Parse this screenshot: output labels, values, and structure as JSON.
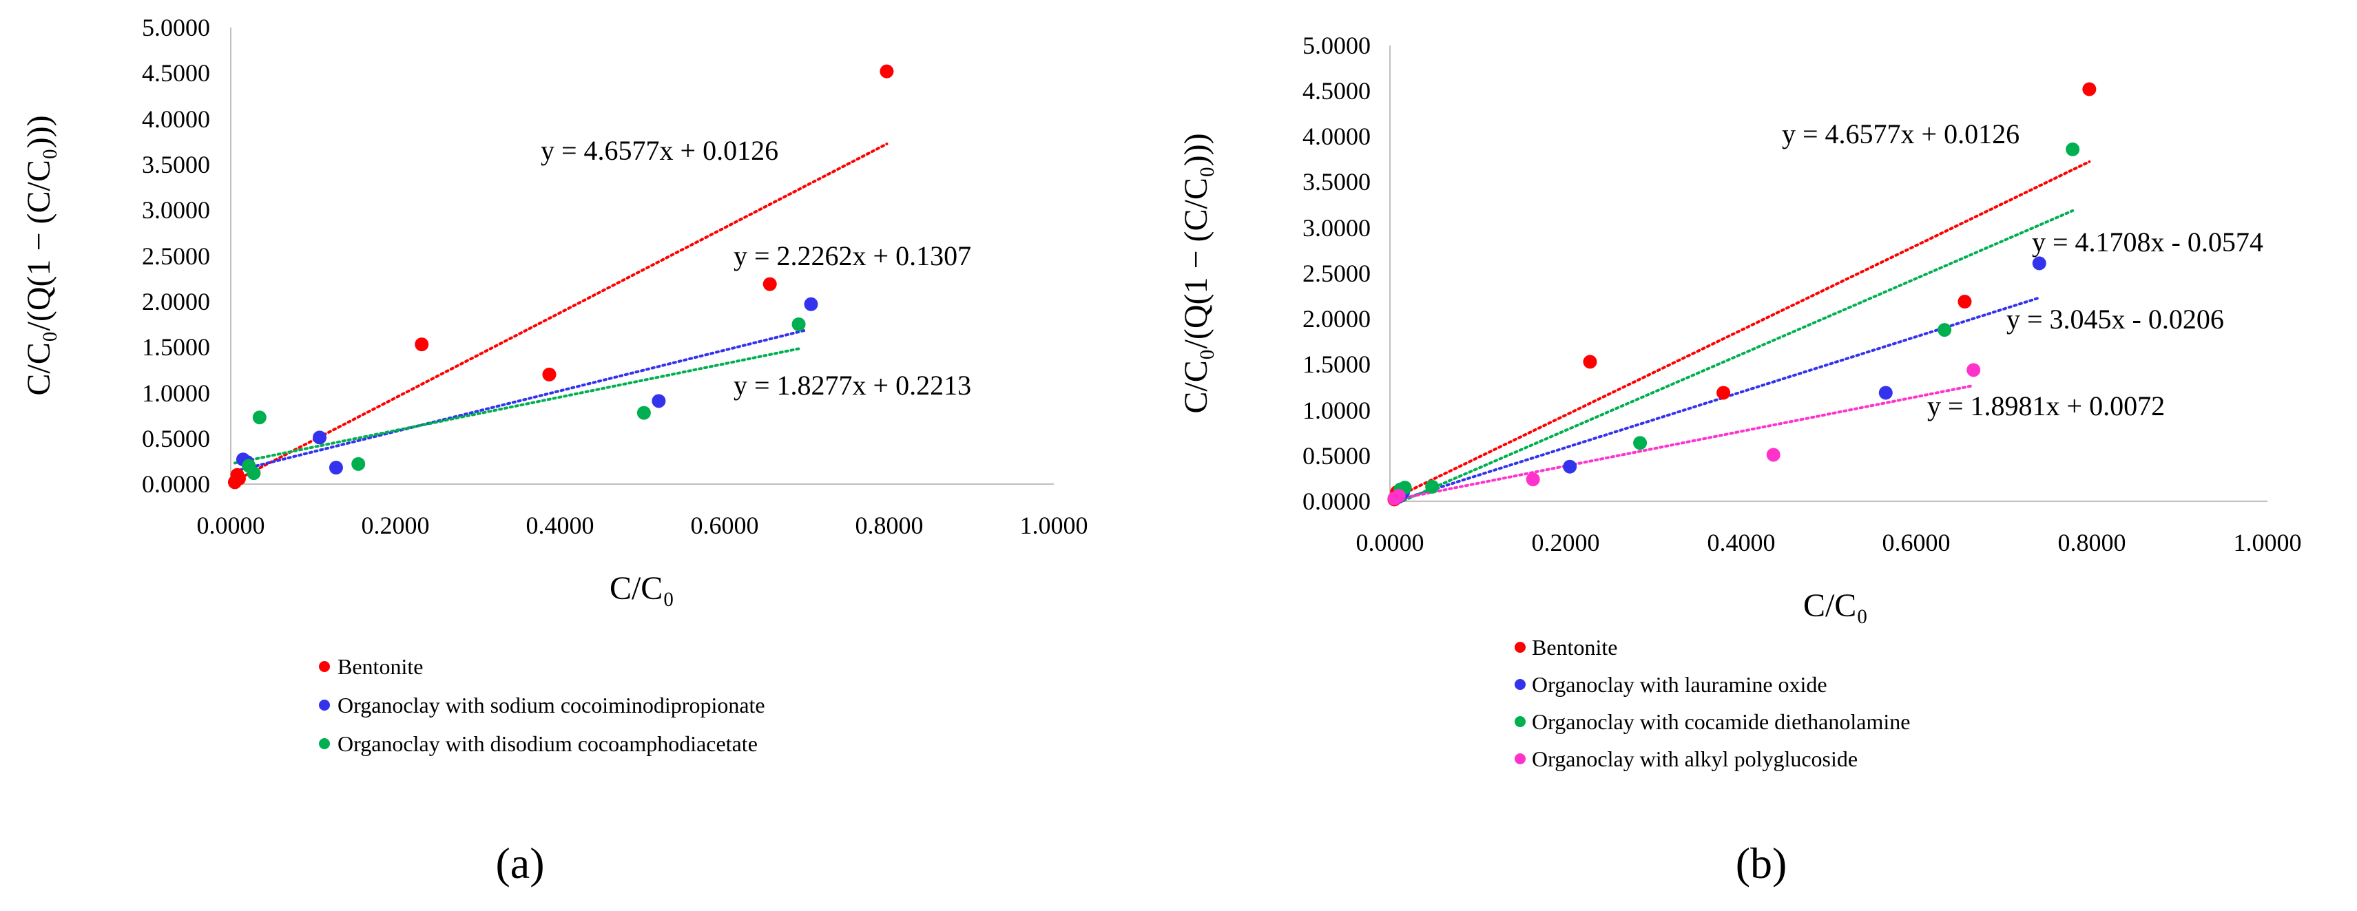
{
  "chart_data": [
    {
      "type": "scatter",
      "panel_label": "(a)",
      "xlabel": "C/C₀",
      "ylabel": "C/C₀/(Q(1 − (C/C₀)))",
      "xlim": [
        0,
        1
      ],
      "ylim": [
        0,
        5
      ],
      "xticks": [
        "0.0000",
        "0.2000",
        "0.4000",
        "0.6000",
        "0.8000",
        "1.0000"
      ],
      "yticks": [
        "0.0000",
        "0.5000",
        "1.0000",
        "1.5000",
        "2.0000",
        "2.5000",
        "3.0000",
        "3.5000",
        "4.0000",
        "4.5000",
        "5.0000"
      ],
      "grid": false,
      "series": [
        {
          "name": "Bentonite",
          "color": "#ff0000",
          "points": [
            [
              0.005,
              0.02
            ],
            [
              0.008,
              0.1
            ],
            [
              0.01,
              0.06
            ],
            [
              0.232,
              1.53
            ],
            [
              0.387,
              1.2
            ],
            [
              0.655,
              2.19
            ],
            [
              0.797,
              4.52
            ]
          ],
          "trend": {
            "slope": 4.6577,
            "intercept": 0.0126,
            "x_range": [
              0,
              0.797
            ]
          }
        },
        {
          "name": "Organoclay with sodium cocoiminodipropionate",
          "color": "#3333ee",
          "points": [
            [
              0.015,
              0.27
            ],
            [
              0.02,
              0.24
            ],
            [
              0.108,
              0.51
            ],
            [
              0.128,
              0.18
            ],
            [
              0.52,
              0.91
            ],
            [
              0.705,
              1.97
            ]
          ],
          "trend": {
            "slope": 2.2262,
            "intercept": 0.1307,
            "x_range": [
              0.005,
              0.7
            ]
          }
        },
        {
          "name": "Organoclay with disodium cocoamphodiacetate",
          "color": "#00b050",
          "points": [
            [
              0.022,
              0.2
            ],
            [
              0.028,
              0.12
            ],
            [
              0.035,
              0.73
            ],
            [
              0.155,
              0.22
            ],
            [
              0.502,
              0.78
            ],
            [
              0.69,
              1.75
            ]
          ],
          "trend": {
            "slope": 1.8277,
            "intercept": 0.2213,
            "x_range": [
              0.005,
              0.69
            ]
          }
        }
      ],
      "equations": [
        "y = 4.6577x + 0.0126",
        "y = 2.2262x + 0.1307",
        "y = 1.8277x + 0.2213"
      ],
      "legend": [
        "Bentonite",
        "Organoclay with sodium cocoiminodipropionate",
        "Organoclay with disodium cocoamphodiacetate"
      ]
    },
    {
      "type": "scatter",
      "panel_label": "(b)",
      "xlabel": "C/C₀",
      "ylabel": "C/C₀/(Q(1 − (C/C₀)))",
      "xlim": [
        0,
        1
      ],
      "ylim": [
        0,
        5
      ],
      "xticks": [
        "0.0000",
        "0.2000",
        "0.4000",
        "0.6000",
        "0.8000",
        "1.0000"
      ],
      "yticks": [
        "0.0000",
        "0.5000",
        "1.0000",
        "1.5000",
        "2.0000",
        "2.5000",
        "3.0000",
        "3.5000",
        "4.0000",
        "4.5000",
        "5.0000"
      ],
      "grid": false,
      "series": [
        {
          "name": "Bentonite",
          "color": "#ff0000",
          "points": [
            [
              0.005,
              0.02
            ],
            [
              0.008,
              0.1
            ],
            [
              0.01,
              0.06
            ],
            [
              0.228,
              1.53
            ],
            [
              0.38,
              1.19
            ],
            [
              0.655,
              2.19
            ],
            [
              0.797,
              4.52
            ]
          ],
          "trend": {
            "slope": 4.6577,
            "intercept": 0.0126,
            "x_range": [
              0,
              0.797
            ]
          }
        },
        {
          "name": "Organoclay with lauramine oxide",
          "color": "#3333ee",
          "points": [
            [
              0.01,
              0.05
            ],
            [
              0.015,
              0.1
            ],
            [
              0.205,
              0.38
            ],
            [
              0.565,
              1.19
            ],
            [
              0.74,
              2.61
            ]
          ],
          "trend": {
            "slope": 3.045,
            "intercept": -0.0206,
            "x_range": [
              0.005,
              0.74
            ]
          }
        },
        {
          "name": "Organoclay with cocamide diethanolamine",
          "color": "#00b050",
          "points": [
            [
              0.012,
              0.13
            ],
            [
              0.017,
              0.15
            ],
            [
              0.048,
              0.16
            ],
            [
              0.285,
              0.64
            ],
            [
              0.632,
              1.88
            ],
            [
              0.778,
              3.86
            ]
          ],
          "trend": {
            "slope": 4.1708,
            "intercept": -0.0574,
            "x_range": [
              0.01,
              0.778
            ]
          }
        },
        {
          "name": "Organoclay with alkyl polyglucoside",
          "color": "#ff33cc",
          "points": [
            [
              0.005,
              0.03
            ],
            [
              0.01,
              0.06
            ],
            [
              0.163,
              0.24
            ],
            [
              0.437,
              0.51
            ],
            [
              0.665,
              1.44
            ]
          ],
          "trend": {
            "slope": 1.8981,
            "intercept": 0.0072,
            "x_range": [
              0,
              0.665
            ]
          }
        }
      ],
      "equations": [
        "y = 4.6577x + 0.0126",
        "y = 4.1708x - 0.0574",
        "y = 3.045x - 0.0206",
        "y = 1.8981x + 0.0072"
      ],
      "legend": [
        "Bentonite",
        "Organoclay with lauramine oxide",
        "Organoclay with cocamide diethanolamine",
        "Organoclay with alkyl polyglucoside"
      ]
    }
  ]
}
